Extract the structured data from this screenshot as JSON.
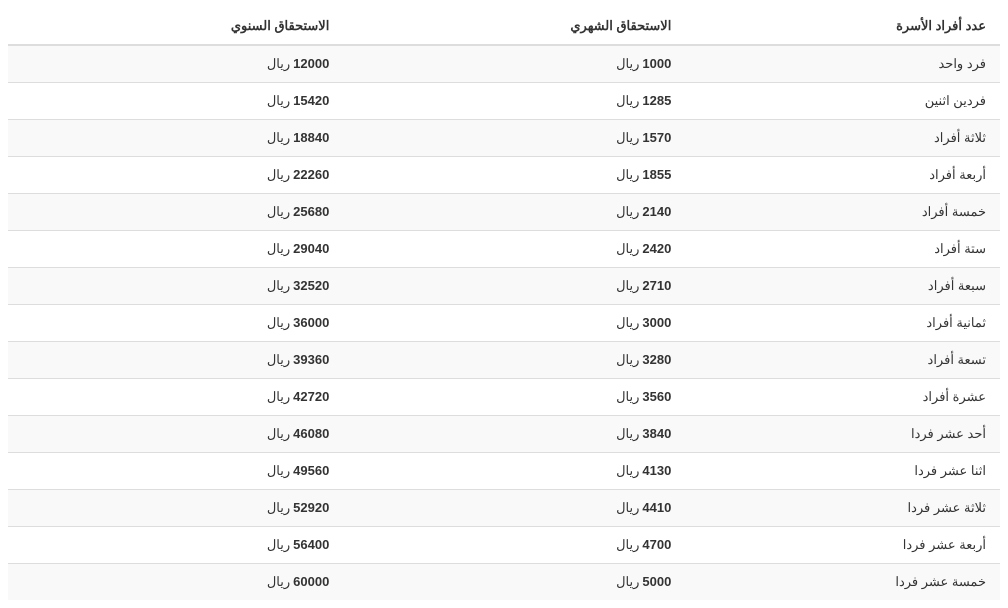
{
  "table": {
    "columns": [
      "عدد أفراد الأسرة",
      "الاستحقاق الشهري",
      "الاستحقاق السنوي"
    ],
    "currency": "ريال",
    "rows": [
      {
        "family": "فرد واحد",
        "monthly": "1000",
        "yearly": "12000"
      },
      {
        "family": "فردين اثنين",
        "monthly": "1285",
        "yearly": "15420"
      },
      {
        "family": "ثلاثة أفراد",
        "monthly": "1570",
        "yearly": "18840"
      },
      {
        "family": "أربعة أفراد",
        "monthly": "1855",
        "yearly": "22260"
      },
      {
        "family": "خمسة أفراد",
        "monthly": "2140",
        "yearly": "25680"
      },
      {
        "family": "ستة أفراد",
        "monthly": "2420",
        "yearly": "29040"
      },
      {
        "family": "سبعة أفراد",
        "monthly": "2710",
        "yearly": "32520"
      },
      {
        "family": "ثمانية أفراد",
        "monthly": "3000",
        "yearly": "36000"
      },
      {
        "family": "تسعة أفراد",
        "monthly": "3280",
        "yearly": "39360"
      },
      {
        "family": "عشرة أفراد",
        "monthly": "3560",
        "yearly": "42720"
      },
      {
        "family": "أحد عشر فردا",
        "monthly": "3840",
        "yearly": "46080"
      },
      {
        "family": "اثنا عشر فردا",
        "monthly": "4130",
        "yearly": "49560"
      },
      {
        "family": "ثلاثة عشر فردا",
        "monthly": "4410",
        "yearly": "52920"
      },
      {
        "family": "أربعة عشر فردا",
        "monthly": "4700",
        "yearly": "56400"
      },
      {
        "family": "خمسة عشر فردا",
        "monthly": "5000",
        "yearly": "60000"
      }
    ]
  }
}
